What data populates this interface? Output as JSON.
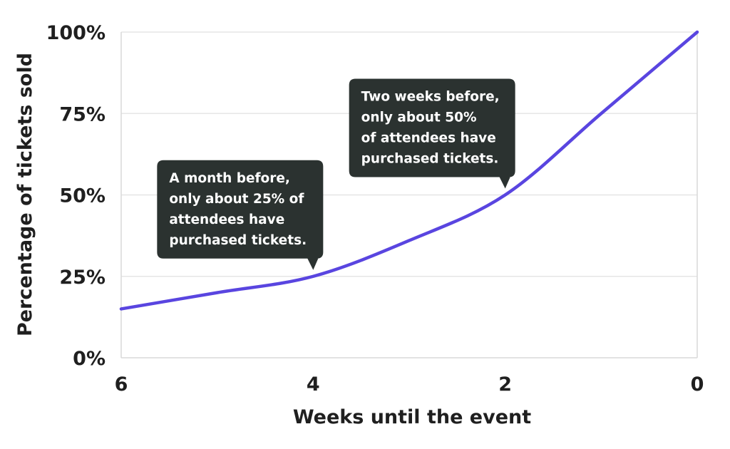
{
  "chart_data": {
    "type": "line",
    "title": "",
    "xlabel": "Weeks until the event",
    "ylabel": "Percentage of tickets sold",
    "xlim": [
      6,
      0
    ],
    "ylim": [
      0,
      100
    ],
    "x_ticks": [
      {
        "value": 6,
        "label": "6"
      },
      {
        "value": 4,
        "label": "4"
      },
      {
        "value": 2,
        "label": "2"
      },
      {
        "value": 0,
        "label": "0"
      }
    ],
    "y_ticks": [
      {
        "value": 0,
        "label": "0%"
      },
      {
        "value": 25,
        "label": "25%"
      },
      {
        "value": 50,
        "label": "50%"
      },
      {
        "value": 75,
        "label": "75%"
      },
      {
        "value": 100,
        "label": "100%"
      }
    ],
    "grid": true,
    "series": [
      {
        "color": "#5945e0",
        "x": [
          6,
          5,
          4,
          3,
          2,
          1,
          0
        ],
        "y": [
          15,
          20,
          25,
          36,
          50,
          75,
          100
        ]
      }
    ],
    "annotations": [
      {
        "lines": [
          "A month before,",
          "only about 25% of",
          "attendees have",
          "purchased tickets."
        ],
        "x": 4,
        "y": 25
      },
      {
        "lines": [
          "Two weeks before,",
          "only about 50%",
          "of attendees have",
          "purchased tickets."
        ],
        "x": 2,
        "y": 50
      }
    ],
    "callout_color": "#2b3230"
  }
}
